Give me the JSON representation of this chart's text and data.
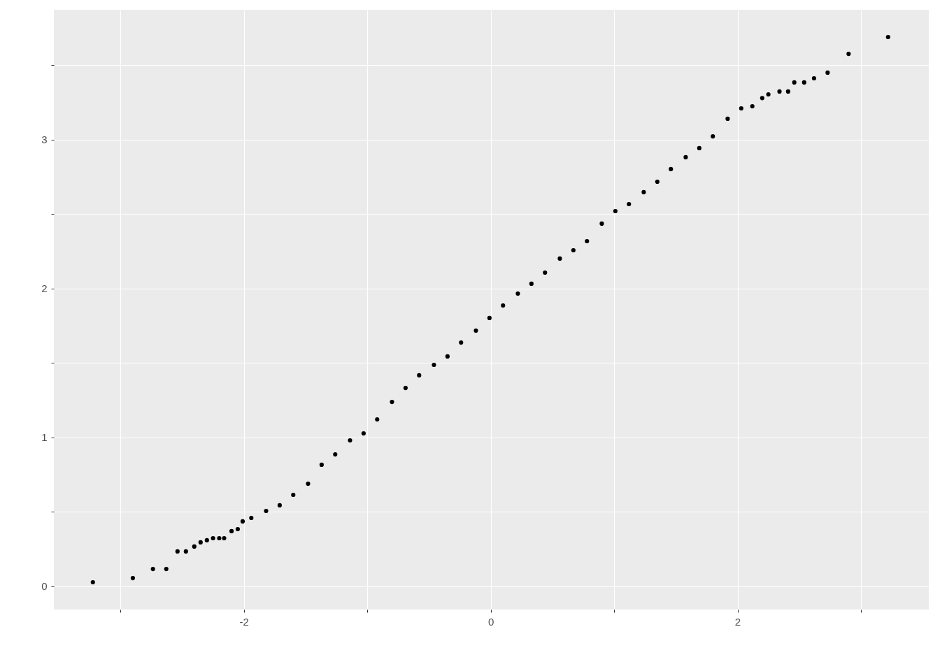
{
  "chart_data": {
    "type": "scatter",
    "x": [
      -3.224,
      -2.9,
      -2.737,
      -2.629,
      -2.538,
      -2.47,
      -2.402,
      -2.351,
      -2.3,
      -2.25,
      -2.2,
      -2.16,
      -2.1,
      -2.05,
      -2.01,
      -1.94,
      -1.82,
      -1.71,
      -1.6,
      -1.48,
      -1.37,
      -1.26,
      -1.14,
      -1.03,
      -0.92,
      -0.8,
      -0.69,
      -0.58,
      -0.46,
      -0.35,
      -0.24,
      -0.12,
      -0.01,
      0.1,
      0.22,
      0.33,
      0.44,
      0.56,
      0.67,
      0.78,
      0.9,
      1.01,
      1.12,
      1.24,
      1.35,
      1.46,
      1.58,
      1.69,
      1.8,
      1.92,
      2.03,
      2.12,
      2.2,
      2.25,
      2.34,
      2.41,
      2.46,
      2.54,
      2.62,
      2.73,
      2.9,
      3.22
    ],
    "series": [
      {
        "color": "#000000",
        "values": [
          0.028,
          0.056,
          0.117,
          0.117,
          0.235,
          0.235,
          0.268,
          0.296,
          0.31,
          0.324,
          0.324,
          0.324,
          0.371,
          0.385,
          0.437,
          0.46,
          0.507,
          0.545,
          0.615,
          0.69,
          0.817,
          0.887,
          0.981,
          1.028,
          1.122,
          1.239,
          1.333,
          1.418,
          1.488,
          1.545,
          1.638,
          1.718,
          1.803,
          1.887,
          1.967,
          2.033,
          2.108,
          2.202,
          2.258,
          2.319,
          2.437,
          2.521,
          2.568,
          2.648,
          2.718,
          2.803,
          2.883,
          2.944,
          3.023,
          3.141,
          3.211,
          3.225,
          3.28,
          3.305,
          3.324,
          3.324,
          3.385,
          3.385,
          3.413,
          3.451,
          3.577,
          3.69
        ]
      }
    ],
    "xlim": [
      -3.54,
      3.55
    ],
    "ylim": [
      -0.155,
      3.873
    ],
    "xticks": [
      {
        "value": -3,
        "label": null
      },
      -2,
      {
        "value": -1,
        "label": null
      },
      0,
      {
        "value": 1,
        "label": null
      },
      2,
      {
        "value": 3,
        "label": null
      }
    ],
    "yticks": [
      0,
      {
        "value": 0.5,
        "label": null
      },
      1,
      {
        "value": 1.5,
        "label": null
      },
      2,
      {
        "value": 2.5,
        "label": null
      },
      3,
      {
        "value": 3.5,
        "label": null
      }
    ],
    "grid": true,
    "marker": "circle"
  }
}
